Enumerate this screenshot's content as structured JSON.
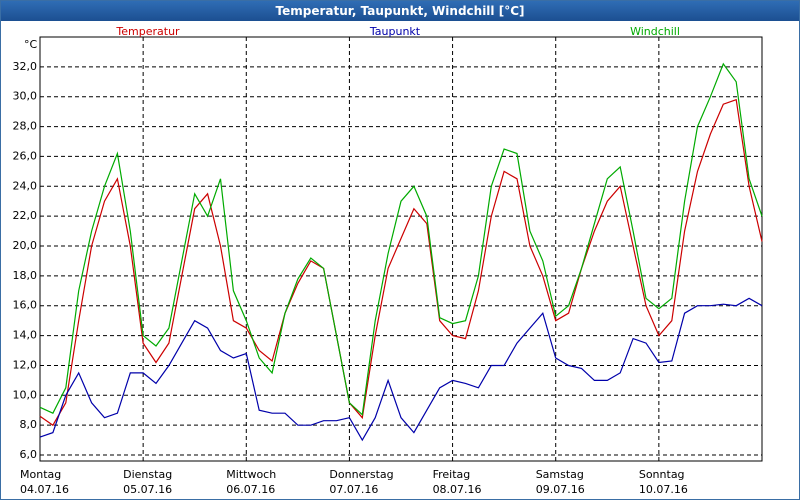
{
  "chart_data": {
    "type": "line",
    "title": "Temperatur, Taupunkt, Windchill [°C]",
    "y_unit": "°C",
    "xlim": [
      0,
      168
    ],
    "ylim": [
      5.6,
      34.0
    ],
    "grid": true,
    "xticks": [
      {
        "value": 0,
        "label": "Montag",
        "date": "04.07.16"
      },
      {
        "value": 24,
        "label": "Dienstag",
        "date": "05.07.16"
      },
      {
        "value": 48,
        "label": "Mittwoch",
        "date": "06.07.16"
      },
      {
        "value": 72,
        "label": "Donnerstag",
        "date": "07.07.16"
      },
      {
        "value": 96,
        "label": "Freitag",
        "date": "08.07.16"
      },
      {
        "value": 120,
        "label": "Samstag",
        "date": "09.07.16"
      },
      {
        "value": 144,
        "label": "Sonntag",
        "date": "10.07.16"
      }
    ],
    "yticks": [
      {
        "value": 6,
        "label": "6,0"
      },
      {
        "value": 8,
        "label": "8,0"
      },
      {
        "value": 10,
        "label": "10,0"
      },
      {
        "value": 12,
        "label": "12,0"
      },
      {
        "value": 14,
        "label": "14,0"
      },
      {
        "value": 16,
        "label": "16,0"
      },
      {
        "value": 18,
        "label": "18,0"
      },
      {
        "value": 20,
        "label": "20,0"
      },
      {
        "value": 22,
        "label": "22,0"
      },
      {
        "value": 24,
        "label": "24,0"
      },
      {
        "value": 26,
        "label": "26,0"
      },
      {
        "value": 28,
        "label": "28,0"
      },
      {
        "value": 30,
        "label": "30,0"
      },
      {
        "value": 32,
        "label": "32,0"
      }
    ],
    "x": [
      0,
      3,
      6,
      9,
      12,
      15,
      18,
      21,
      24,
      27,
      30,
      33,
      36,
      39,
      42,
      45,
      48,
      51,
      54,
      57,
      60,
      63,
      66,
      69,
      72,
      75,
      78,
      81,
      84,
      87,
      90,
      93,
      96,
      99,
      102,
      105,
      108,
      111,
      114,
      117,
      120,
      123,
      126,
      129,
      132,
      135,
      138,
      141,
      144,
      147,
      150,
      153,
      156,
      159,
      162,
      165,
      168
    ],
    "series": [
      {
        "name": "Temperatur",
        "color": "#cc0000",
        "values": [
          8.6,
          8.0,
          9.5,
          15,
          20,
          23,
          24.5,
          20,
          13.5,
          12.2,
          13.5,
          18,
          22.5,
          23.5,
          20,
          15,
          14.5,
          13,
          12.3,
          15.5,
          17.5,
          19,
          18.5,
          14,
          9.5,
          8.5,
          14,
          18.5,
          20.5,
          22.5,
          21.5,
          15,
          14,
          13.8,
          17,
          22,
          25,
          24.5,
          20,
          18,
          15,
          15.5,
          18.5,
          21,
          23,
          24,
          20,
          16,
          14,
          15,
          21,
          25,
          27.5,
          29.5,
          29.8,
          24,
          20.3
        ]
      },
      {
        "name": "Taupunkt",
        "color": "#0000aa",
        "values": [
          7.2,
          7.5,
          10,
          11.5,
          9.5,
          8.5,
          8.8,
          11.5,
          11.5,
          10.8,
          12,
          13.5,
          15,
          14.5,
          13,
          12.5,
          12.8,
          9,
          8.8,
          8.8,
          8,
          8,
          8.3,
          8.3,
          8.5,
          7,
          8.5,
          11,
          8.5,
          7.5,
          9,
          10.5,
          11,
          10.8,
          10.5,
          12,
          12,
          13.5,
          14.5,
          15.5,
          12.5,
          12,
          11.8,
          11,
          11,
          11.5,
          13.8,
          13.5,
          12.2,
          12.3,
          15.5,
          16,
          16,
          16.1,
          16,
          16.5,
          16
        ]
      },
      {
        "name": "Windchill",
        "color": "#00aa00",
        "values": [
          9.2,
          8.8,
          10.5,
          17,
          21,
          24,
          26.2,
          21,
          14,
          13.3,
          14.5,
          19,
          23.5,
          22,
          24.5,
          17,
          15,
          12.5,
          11.5,
          15.5,
          17.8,
          19.2,
          18.5,
          14,
          9.5,
          8.7,
          15,
          19.5,
          23,
          24,
          22,
          15.2,
          14.8,
          15,
          18,
          24,
          26.5,
          26.2,
          21,
          19,
          15.3,
          16,
          18.5,
          21.5,
          24.5,
          25.3,
          21,
          16.5,
          15.8,
          16.5,
          23,
          28,
          30,
          32.2,
          31,
          24.5,
          22
        ]
      }
    ]
  }
}
